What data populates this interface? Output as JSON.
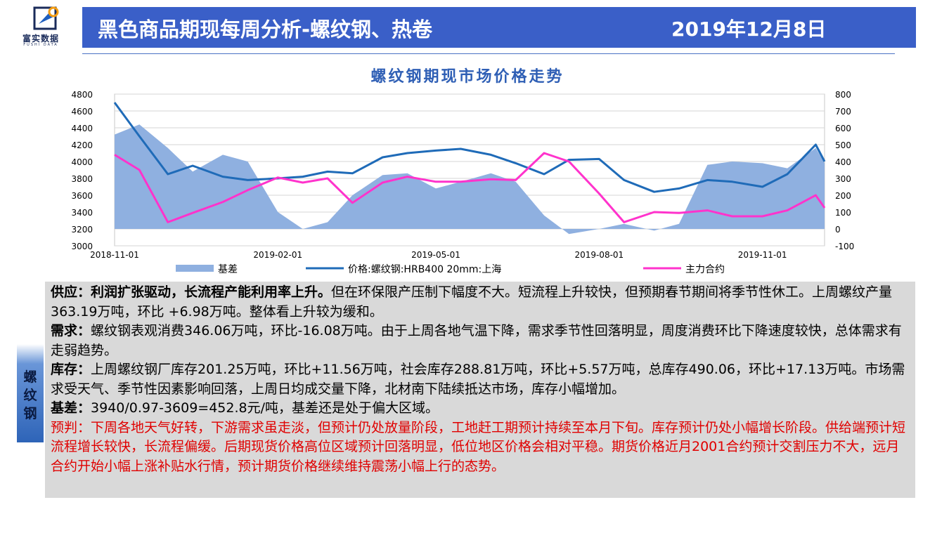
{
  "header": {
    "logo_name": "富实数据",
    "logo_en": "FUSHI DATA",
    "title": "黑色商品期现每周分析-螺纹钢、热卷",
    "date": "2019年12月8日"
  },
  "side_tab": [
    "螺",
    "纹",
    "钢"
  ],
  "analysis": {
    "supply_label": "供应：",
    "supply_bold": "利润扩张驱动，长流程产能利用率上升。",
    "supply_text": "但在环保限产压制下幅度不大。短流程上升较快，但预期春节期间将季节性休工。上周螺纹产量363.19万吨，环比 +6.98万吨。整体看上升较为缓和。",
    "demand_label": "需求：",
    "demand_text": "螺纹钢表观消费346.06万吨，环比-16.08万吨。由于上周各地气温下降，需求季节性回落明显，周度消费环比下降速度较快，总体需求有走弱趋势。",
    "inventory_label": "库存：",
    "inventory_text": "上周螺纹钢厂库存201.25万吨，环比+11.56万吨，社会库存288.81万吨，环比+5.57万吨，总库存490.06，环比+17.13万吨。市场需求受天气、季节性因素影响回落，上周日均成交量下降，北材南下陆续抵达市场，库存小幅增加。",
    "basis_label": "基差：",
    "basis_text": "3940/0.97-3609=452.8元/吨，基差还是处于偏大区域。",
    "forecast_text": "预判：下周各地天气好转，下游需求虽走淡，但预计仍处放量阶段，工地赶工期预计持续至本月下旬。库存预计仍处小幅增长阶段。供给端预计短流程增长较快，长流程偏缓。后期现货价格高位区域预计回落明显，低位地区价格会相对平稳。期货价格近月2001合约预计交割压力不大，远月合约开始小幅上涨补贴水行情，预计期货价格继续维持震荡小幅上行的态势。"
  },
  "chart_data": {
    "type": "line",
    "title": "螺纹钢期现市场价格走势",
    "x_ticks": [
      "2018-11-01",
      "2019-02-01",
      "2019-05-01",
      "2019-08-01",
      "2019-11-01"
    ],
    "x_range": [
      "2018-11-01",
      "2019-12-06"
    ],
    "y_left": {
      "min": 3000,
      "max": 4800,
      "ticks": [
        3000,
        3200,
        3400,
        3600,
        3800,
        4000,
        4200,
        4400,
        4600,
        4800
      ]
    },
    "y_right": {
      "min": -100,
      "max": 800,
      "ticks": [
        -100,
        0,
        100,
        200,
        300,
        400,
        500,
        600,
        700,
        800
      ]
    },
    "grid": true,
    "legend_position": "bottom",
    "x": [
      "2018-11-01",
      "2018-11-15",
      "2018-12-01",
      "2018-12-15",
      "2019-01-01",
      "2019-01-15",
      "2019-02-01",
      "2019-02-15",
      "2019-03-01",
      "2019-03-15",
      "2019-04-01",
      "2019-04-15",
      "2019-05-01",
      "2019-05-15",
      "2019-06-01",
      "2019-06-15",
      "2019-07-01",
      "2019-07-15",
      "2019-08-01",
      "2019-08-15",
      "2019-09-01",
      "2019-09-15",
      "2019-10-01",
      "2019-10-15",
      "2019-11-01",
      "2019-11-15",
      "2019-12-01",
      "2019-12-06"
    ],
    "series": [
      {
        "name": "基差",
        "axis": "right",
        "style": "area",
        "color": "#8fb0e0",
        "values": [
          560,
          620,
          480,
          340,
          440,
          400,
          100,
          0,
          40,
          200,
          320,
          330,
          240,
          280,
          330,
          280,
          80,
          -30,
          0,
          30,
          -10,
          30,
          380,
          400,
          390,
          360,
          480,
          390
        ]
      },
      {
        "name": "价格:螺纹钢:HRB400 20mm:上海",
        "axis": "left",
        "style": "line",
        "color": "#1f6bb8",
        "values": [
          4700,
          4300,
          3850,
          3950,
          3820,
          3780,
          3800,
          3820,
          3880,
          3860,
          4050,
          4100,
          4130,
          4150,
          4080,
          3980,
          3850,
          4020,
          4030,
          3780,
          3640,
          3680,
          3780,
          3760,
          3700,
          3850,
          4200,
          4000
        ]
      },
      {
        "name": "主力合约",
        "axis": "left",
        "style": "line",
        "color": "#ff33cc",
        "values": [
          4080,
          3900,
          3280,
          3390,
          3520,
          3660,
          3810,
          3750,
          3800,
          3510,
          3750,
          3820,
          3760,
          3760,
          3790,
          3780,
          4100,
          4000,
          3620,
          3280,
          3400,
          3390,
          3420,
          3350,
          3350,
          3420,
          3600,
          3450
        ]
      }
    ]
  }
}
